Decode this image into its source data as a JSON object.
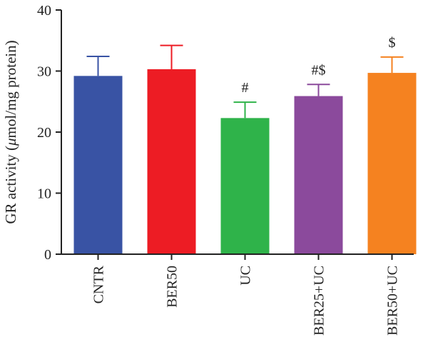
{
  "chart_data": {
    "type": "bar",
    "categories": [
      "CNTR",
      "BER50",
      "UC",
      "BER25+UC",
      "BER50+UC"
    ],
    "values": [
      29.2,
      30.3,
      22.3,
      25.9,
      29.7
    ],
    "errors": [
      3.2,
      3.9,
      2.6,
      1.9,
      2.6
    ],
    "colors": [
      "#3953a4",
      "#ed1c24",
      "#2fb34a",
      "#8b4a9c",
      "#f58220"
    ],
    "annotations": [
      "",
      "",
      "#",
      "#$",
      "$"
    ],
    "ylabel_prefix": "GR activity (",
    "ylabel_mu": "μ",
    "ylabel_suffix": "mol/mg protein)",
    "xlabel": "",
    "ylim": [
      0,
      40
    ],
    "yticks": [
      0,
      10,
      20,
      30,
      40
    ],
    "grid": false,
    "legend": "none"
  }
}
